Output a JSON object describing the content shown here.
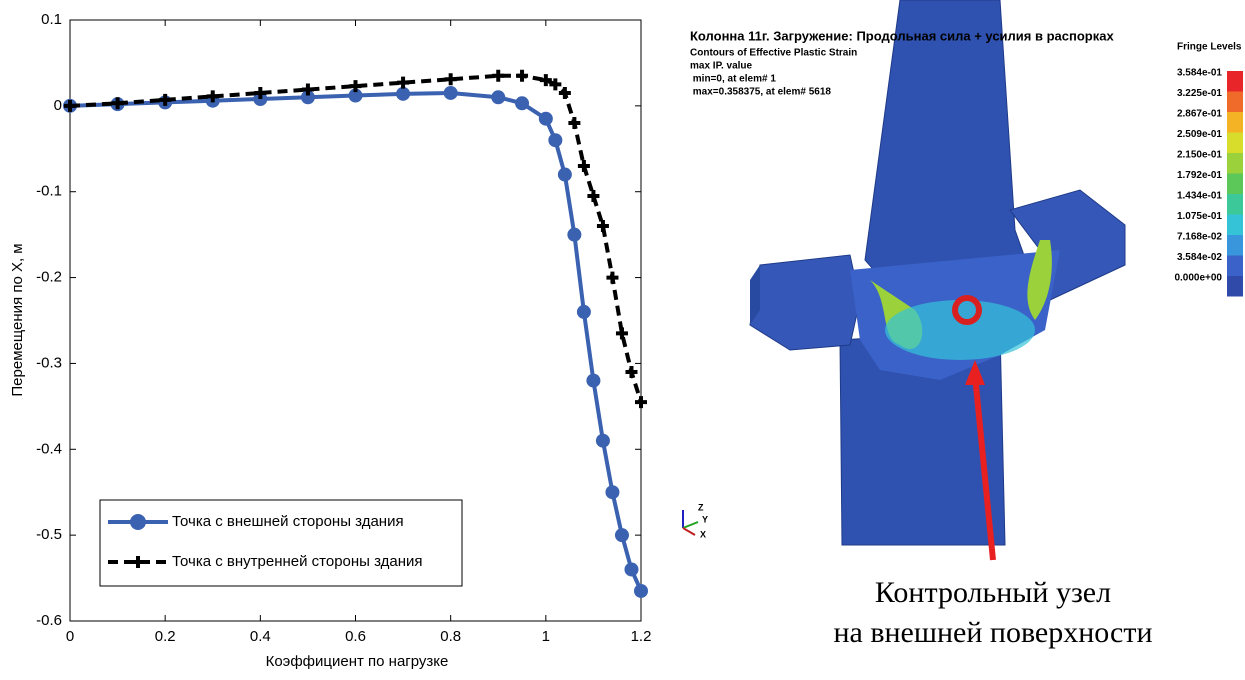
{
  "chart_data": {
    "type": "line",
    "xlabel": "Коэффициент по нагрузке",
    "ylabel": "Перемещения по X, м",
    "x": [
      0,
      0.1,
      0.2,
      0.3,
      0.4,
      0.5,
      0.6,
      0.7,
      0.8,
      0.9,
      0.95,
      1.0,
      1.02,
      1.04,
      1.06,
      1.08,
      1.1,
      1.12,
      1.14,
      1.16,
      1.18,
      1.2
    ],
    "series": [
      {
        "name": "Точка с внешней стороны здания",
        "color": "#3a62b0",
        "marker": "circle",
        "values": [
          0,
          0.002,
          0.004,
          0.006,
          0.008,
          0.01,
          0.012,
          0.014,
          0.015,
          0.01,
          0.003,
          -0.015,
          -0.04,
          -0.08,
          -0.15,
          -0.24,
          -0.32,
          -0.39,
          -0.45,
          -0.5,
          -0.54,
          -0.565
        ]
      },
      {
        "name": "Точка с внутренней стороны здания",
        "color": "#000000",
        "marker": "plus",
        "dashed": true,
        "values": [
          0,
          0.003,
          0.007,
          0.011,
          0.015,
          0.019,
          0.023,
          0.027,
          0.031,
          0.035,
          0.035,
          0.03,
          0.025,
          0.015,
          -0.02,
          -0.07,
          -0.105,
          -0.14,
          -0.2,
          -0.265,
          -0.31,
          -0.345
        ]
      }
    ],
    "xlim": [
      0,
      1.2
    ],
    "xticks": [
      0,
      0.2,
      0.4,
      0.6,
      0.8,
      1,
      1.2
    ],
    "ylim": [
      -0.6,
      0.1
    ],
    "yticks": [
      -0.6,
      -0.5,
      -0.4,
      -0.3,
      -0.2,
      -0.1,
      0,
      0.1
    ],
    "grid": false,
    "legend": "lower left"
  },
  "fem_panel": {
    "header_lines": [
      "Колонна 11г. Загружение: Продольная сила + усилия в распорках",
      "Contours of Effective Plastic Strain",
      "max IP. value",
      " min=0, at elem# 1",
      " max=0.358375, at elem# 5618"
    ],
    "fringe_title": "Fringe Levels",
    "fringe_levels": [
      "3.584e-01",
      "3.225e-01",
      "2.867e-01",
      "2.509e-01",
      "2.150e-01",
      "1.792e-01",
      "1.434e-01",
      "1.075e-01",
      "7.168e-02",
      "3.584e-02",
      "0.000e+00"
    ],
    "fringe_colors": [
      "#e8262a",
      "#f06a2a",
      "#f3b325",
      "#d8dc2a",
      "#9bd13a",
      "#5cc85a",
      "#3dc89a",
      "#35c3d8",
      "#3a96dc",
      "#3a62c8",
      "#2f4aa8"
    ],
    "axis_labels": [
      "Z",
      "Y",
      "X"
    ],
    "caption_lines": [
      "Контрольный узел",
      "на внешней поверхности"
    ]
  }
}
